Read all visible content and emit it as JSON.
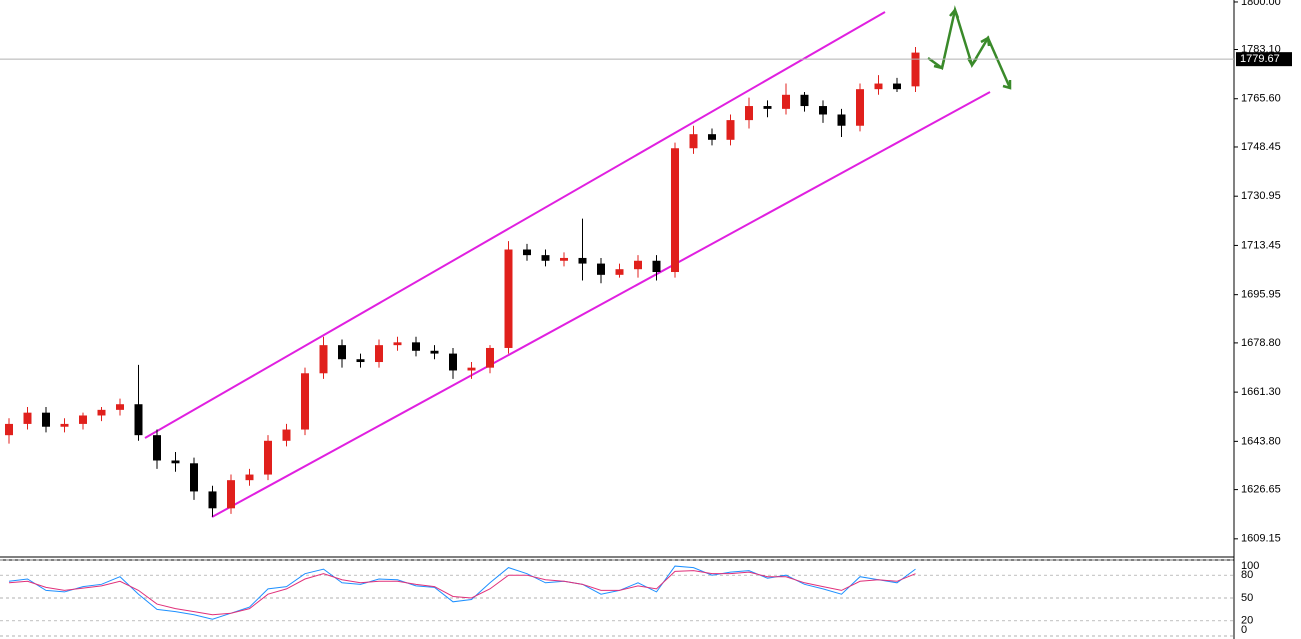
{
  "chart_data": [
    {
      "type": "candlestick",
      "open": [
        1646,
        1650,
        1654,
        1649,
        1650,
        1653,
        1655,
        1657,
        1646,
        1637,
        1636,
        1626,
        1620,
        1630,
        1632,
        1644,
        1648,
        1668,
        1678,
        1673,
        1672,
        1678,
        1679,
        1676,
        1675,
        1669,
        1670,
        1677,
        1712,
        1710,
        1708,
        1709,
        1707,
        1703,
        1705,
        1708,
        1704,
        1748,
        1753,
        1751,
        1758,
        1763,
        1762,
        1767,
        1763,
        1760,
        1756,
        1769,
        1771,
        1770
      ],
      "high": [
        1652,
        1656,
        1656,
        1652,
        1654,
        1656,
        1659,
        1671,
        1648,
        1640,
        1638,
        1628,
        1632,
        1634,
        1646,
        1650,
        1670,
        1681,
        1680,
        1675,
        1680,
        1681,
        1681,
        1678,
        1677,
        1672,
        1678,
        1715,
        1714,
        1712,
        1711,
        1723,
        1709,
        1707,
        1710,
        1710,
        1750,
        1756,
        1755,
        1760,
        1766,
        1765,
        1771,
        1768,
        1765,
        1762,
        1771,
        1774,
        1773,
        1784
      ],
      "low": [
        1643,
        1648,
        1647,
        1647,
        1648,
        1651,
        1653,
        1644,
        1634,
        1633,
        1623,
        1617,
        1618,
        1628,
        1630,
        1642,
        1646,
        1666,
        1670,
        1670,
        1670,
        1676,
        1674,
        1673,
        1666,
        1666,
        1668,
        1675,
        1708,
        1706,
        1706,
        1701,
        1700,
        1702,
        1702,
        1701,
        1702,
        1746,
        1749,
        1749,
        1755,
        1759,
        1760,
        1761,
        1757,
        1752,
        1754,
        1767,
        1768,
        1768
      ],
      "close": [
        1650,
        1654,
        1649,
        1650,
        1653,
        1655,
        1657,
        1646,
        1637,
        1636,
        1626,
        1620,
        1630,
        1632,
        1644,
        1648,
        1668,
        1678,
        1673,
        1672,
        1678,
        1679,
        1676,
        1675,
        1669,
        1670,
        1677,
        1712,
        1710,
        1708,
        1709,
        1707,
        1703,
        1705,
        1708,
        1704,
        1748,
        1753,
        1751,
        1758,
        1763,
        1762,
        1767,
        1763,
        1760,
        1756,
        1769,
        1771,
        1769,
        1782
      ],
      "up_color": "#e0201c",
      "down_color": "#000000",
      "ylim": [
        1603.4,
        1800.7
      ],
      "yticks": [
        {
          "value": 1800,
          "label": "1800.00"
        },
        {
          "value": 1783.1,
          "label": "1783.10"
        },
        {
          "value": 1765.6,
          "label": "1765.60"
        },
        1748.45,
        1730.95,
        1713.45,
        1695.95,
        {
          "value": 1678.8,
          "label": "1678.80"
        },
        {
          "value": 1661.3,
          "label": "1661.30"
        },
        {
          "value": 1643.8,
          "label": "1643.80"
        },
        1626.65,
        1609.15
      ],
      "current_price": 1779.67
    },
    {
      "type": "line",
      "series": [
        {
          "color": "#1e90ff",
          "values": [
            72,
            75,
            60,
            58,
            65,
            68,
            78,
            55,
            35,
            32,
            28,
            22,
            30,
            38,
            62,
            65,
            82,
            88,
            70,
            68,
            75,
            74,
            66,
            64,
            45,
            48,
            70,
            90,
            82,
            70,
            72,
            68,
            55,
            60,
            70,
            58,
            92,
            90,
            80,
            84,
            86,
            76,
            80,
            68,
            62,
            55,
            78,
            74,
            70,
            88
          ]
        },
        {
          "color": "#e0307a",
          "values": [
            70,
            72,
            64,
            60,
            63,
            66,
            72,
            60,
            42,
            36,
            32,
            28,
            30,
            36,
            55,
            62,
            75,
            82,
            74,
            70,
            72,
            72,
            68,
            65,
            52,
            50,
            62,
            80,
            80,
            74,
            72,
            68,
            60,
            60,
            66,
            62,
            85,
            86,
            82,
            82,
            84,
            78,
            78,
            70,
            65,
            60,
            72,
            74,
            72,
            82
          ]
        }
      ],
      "ylim": [
        0,
        100
      ],
      "yticks": [
        100,
        80,
        50,
        20,
        0
      ]
    }
  ]
}
